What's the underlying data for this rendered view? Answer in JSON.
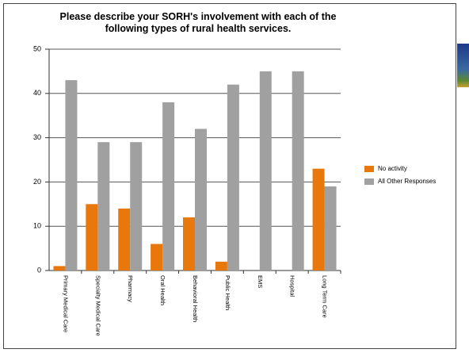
{
  "chart_data": {
    "type": "bar",
    "title": "Please describe your SORH's involvement with each of the following types of rural health services.",
    "categories": [
      "Primary Medical Care",
      "Specialty Medical Care",
      "Pharmacy",
      "Oral Health",
      "Behavioral Health",
      "Public Health",
      "EMS",
      "Hospital",
      "Long Term Care"
    ],
    "series": [
      {
        "name": "No activity",
        "color": "#e8780c",
        "values": [
          1,
          15,
          14,
          6,
          12,
          2,
          0,
          0,
          23
        ]
      },
      {
        "name": "All Other Responses",
        "color": "#a0a0a0",
        "values": [
          43,
          29,
          29,
          38,
          32,
          42,
          45,
          45,
          19
        ]
      }
    ],
    "ylim": [
      0,
      50
    ],
    "yticks": [
      0,
      10,
      20,
      30,
      40,
      50
    ],
    "grid": true,
    "legend": "right"
  }
}
